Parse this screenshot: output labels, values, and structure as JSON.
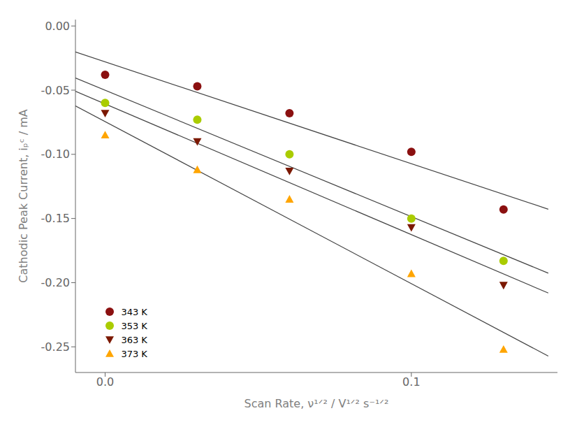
{
  "chart_data": {
    "type": "scatter",
    "log": "x",
    "x_label": "Scan Rate, ν¹ᐟ² / V¹ᐟ² s⁻¹ᐟ²",
    "y_label": "Cathodic Peak Current, iₚᶜ / mA",
    "xlim": [
      0.008,
      0.3
    ],
    "xticks": [
      {
        "value": 0.01,
        "label": "0.0"
      },
      {
        "value": 0.1,
        "label": "0.1"
      }
    ],
    "ylim": [
      -0.27,
      0.005
    ],
    "yticks": [
      {
        "value": 0.0,
        "label": "0.00"
      },
      -0.05,
      {
        "value": -0.1,
        "label": "-0.10"
      },
      -0.15,
      {
        "value": -0.2,
        "label": "-0.20"
      },
      -0.25
    ],
    "grid": false,
    "legend": "lower left",
    "series": [
      {
        "type": "line",
        "color": "#444444",
        "line_style": "solid",
        "x": [
          0.008,
          0.28
        ],
        "values": [
          -0.020287,
          -0.142754
        ]
      },
      {
        "type": "line",
        "color": "#444444",
        "line_style": "solid",
        "x": [
          0.008,
          0.28
        ],
        "values": [
          -0.040565,
          -0.192589
        ]
      },
      {
        "type": "line",
        "color": "#444444",
        "line_style": "solid",
        "x": [
          0.008,
          0.28
        ],
        "values": [
          -0.050899,
          -0.208085
        ]
      },
      {
        "type": "line",
        "color": "#444444",
        "line_style": "solid",
        "x": [
          0.008,
          0.28
        ],
        "values": [
          -0.062257,
          -0.257204
        ]
      },
      {
        "type": "scatter",
        "name": "343 K",
        "color": "#8B1010",
        "marker": "circle",
        "x": [
          0.01,
          0.02,
          0.04,
          0.1,
          0.2
        ],
        "values": [
          -0.038,
          -0.047,
          -0.068,
          -0.098,
          -0.143
        ]
      },
      {
        "type": "scatter",
        "name": "353 K",
        "color": "#AACC00",
        "marker": "circle",
        "x": [
          0.01,
          0.02,
          0.04,
          0.1,
          0.2
        ],
        "values": [
          -0.06,
          -0.073,
          -0.1,
          -0.15,
          -0.183
        ]
      },
      {
        "type": "scatter",
        "name": "363 K",
        "color": "#7B1800",
        "marker": "triangle_down",
        "x": [
          0.01,
          0.02,
          0.04,
          0.1,
          0.2
        ],
        "values": [
          -0.068,
          -0.09,
          -0.113,
          -0.157,
          -0.202
        ]
      },
      {
        "type": "scatter",
        "name": "373 K",
        "color": "#FFA500",
        "marker": "triangle_up",
        "x": [
          0.01,
          0.02,
          0.04,
          0.1,
          0.2
        ],
        "values": [
          -0.085,
          -0.112,
          -0.135,
          -0.193,
          -0.252
        ]
      }
    ]
  }
}
